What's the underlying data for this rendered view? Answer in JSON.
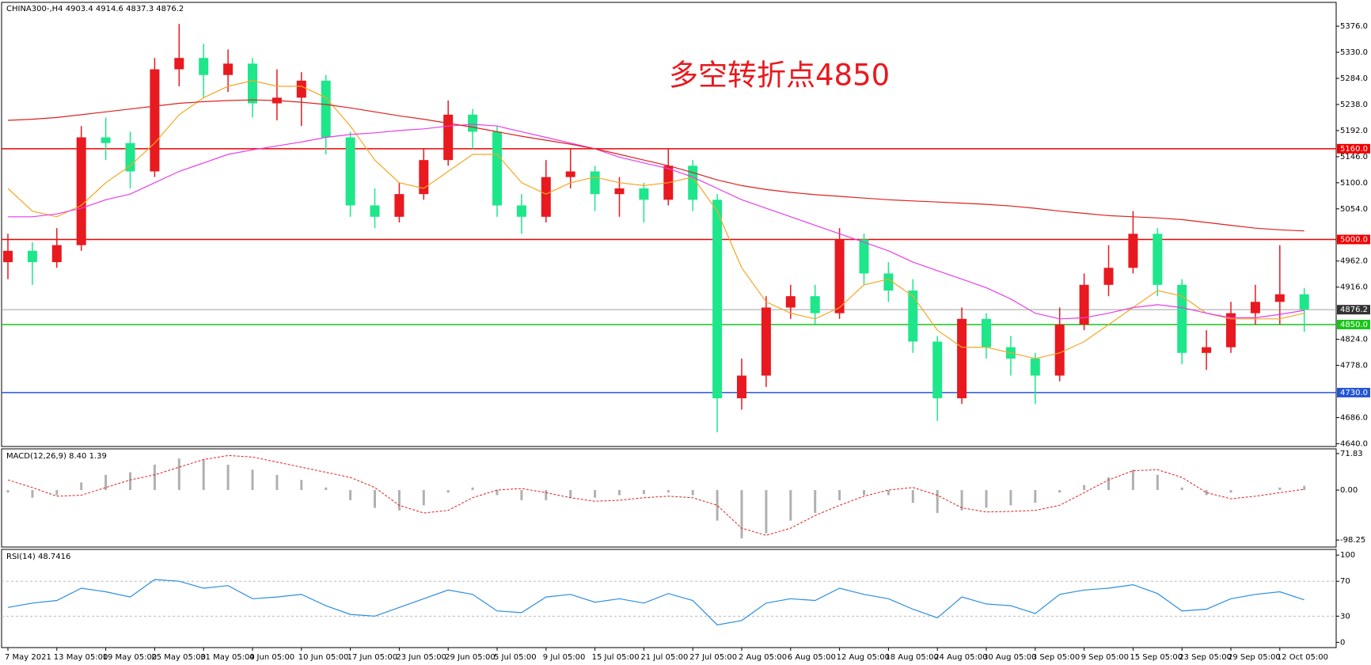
{
  "header": {
    "symbol": "CHINA300-,H4"
  },
  "annotation": "多空转折点4850",
  "chart_data": {
    "type": "candlestick",
    "categories": [
      "7 May 2021",
      null,
      "13 May 05:00",
      null,
      "19 May 05:00",
      null,
      "25 May 05:00",
      null,
      "31 May 05:00",
      null,
      "4 Jun 05:00",
      null,
      "10 Jun 05:00",
      null,
      "17 Jun 05:00",
      null,
      "23 Jun 05:00",
      null,
      "29 Jun 05:00",
      null,
      "5 Jul 05:00",
      null,
      "9 Jul 05:00",
      null,
      "15 Jul 05:00",
      null,
      "21 Jul 05:00",
      null,
      "27 Jul 05:00",
      null,
      "2 Aug 05:00",
      null,
      "6 Aug 05:00",
      null,
      "12 Aug 05:00",
      null,
      "18 Aug 05:00",
      null,
      "24 Aug 05:00",
      null,
      "30 Aug 05:00",
      null,
      "3 Sep 05:00",
      null,
      "9 Sep 05:00",
      null,
      "15 Sep 05:00",
      null,
      "23 Sep 05:00",
      null,
      "29 Sep 05:00",
      null,
      "12 Oct 05:00",
      null
    ],
    "candles": [
      [
        4960,
        5010,
        4930,
        4980
      ],
      [
        4980,
        4995,
        4920,
        4960
      ],
      [
        4960,
        5020,
        4950,
        4990
      ],
      [
        4990,
        5200,
        4980,
        5180
      ],
      [
        5180,
        5215,
        5140,
        5170
      ],
      [
        5170,
        5190,
        5090,
        5120
      ],
      [
        5120,
        5320,
        5110,
        5300
      ],
      [
        5300,
        5380,
        5270,
        5320
      ],
      [
        5320,
        5345,
        5250,
        5290
      ],
      [
        5290,
        5335,
        5260,
        5310
      ],
      [
        5310,
        5320,
        5215,
        5240
      ],
      [
        5240,
        5300,
        5210,
        5250
      ],
      [
        5250,
        5295,
        5200,
        5280
      ],
      [
        5280,
        5290,
        5150,
        5180
      ],
      [
        5180,
        5190,
        5040,
        5060
      ],
      [
        5060,
        5090,
        5020,
        5040
      ],
      [
        5040,
        5100,
        5030,
        5080
      ],
      [
        5080,
        5160,
        5070,
        5140
      ],
      [
        5140,
        5245,
        5130,
        5220
      ],
      [
        5220,
        5230,
        5160,
        5190
      ],
      [
        5190,
        5200,
        5040,
        5060
      ],
      [
        5060,
        5080,
        5010,
        5040
      ],
      [
        5040,
        5140,
        5030,
        5110
      ],
      [
        5110,
        5160,
        5090,
        5120
      ],
      [
        5120,
        5130,
        5050,
        5080
      ],
      [
        5080,
        5110,
        5040,
        5090
      ],
      [
        5090,
        5100,
        5030,
        5070
      ],
      [
        5070,
        5160,
        5060,
        5130
      ],
      [
        5130,
        5140,
        5050,
        5070
      ],
      [
        5070,
        5080,
        4660,
        4720
      ],
      [
        4720,
        4790,
        4700,
        4760
      ],
      [
        4760,
        4900,
        4740,
        4880
      ],
      [
        4880,
        4920,
        4860,
        4900
      ],
      [
        4900,
        4920,
        4850,
        4870
      ],
      [
        4870,
        5020,
        4860,
        5000
      ],
      [
        5000,
        5010,
        4920,
        4940
      ],
      [
        4940,
        4960,
        4890,
        4910
      ],
      [
        4910,
        4930,
        4800,
        4820
      ],
      [
        4820,
        4830,
        4680,
        4720
      ],
      [
        4720,
        4880,
        4710,
        4860
      ],
      [
        4860,
        4870,
        4790,
        4810
      ],
      [
        4810,
        4830,
        4760,
        4790
      ],
      [
        4790,
        4800,
        4710,
        4760
      ],
      [
        4760,
        4880,
        4750,
        4850
      ],
      [
        4850,
        4940,
        4840,
        4920
      ],
      [
        4920,
        4990,
        4900,
        4950
      ],
      [
        4950,
        5050,
        4940,
        5010
      ],
      [
        5010,
        5020,
        4900,
        4920
      ],
      [
        4920,
        4930,
        4780,
        4800
      ],
      [
        4800,
        4840,
        4770,
        4810
      ],
      [
        4810,
        4890,
        4800,
        4870
      ],
      [
        4870,
        4920,
        4850,
        4890
      ],
      [
        4890,
        4990,
        4850,
        4903.4
      ],
      [
        4903.4,
        4914.6,
        4837.3,
        4876.2
      ]
    ],
    "up_color": "#e8191f",
    "down_color": "#1ee68a",
    "ylim": [
      4635,
      5418
    ],
    "yticks": [
      {
        "value": 4640,
        "label": "4640.0"
      },
      {
        "value": 4686,
        "label": "4686.0"
      },
      {
        "value": 4778,
        "label": "4778.0"
      },
      {
        "value": 4824,
        "label": "4824.0"
      },
      {
        "value": 4916,
        "label": "4916.0"
      },
      {
        "value": 4962,
        "label": "4962.0"
      },
      {
        "value": 5054,
        "label": "5054.0"
      },
      {
        "value": 5100,
        "label": "5100.0"
      },
      {
        "value": 5146,
        "label": "5146.0"
      },
      {
        "value": 5192,
        "label": "5192.0"
      },
      {
        "value": 5238,
        "label": "5238.0"
      },
      {
        "value": 5284,
        "label": "5284.0"
      },
      {
        "value": 5330,
        "label": "5330.0"
      },
      {
        "value": 5376,
        "label": "5376.0"
      }
    ],
    "levels": [
      {
        "value": 5160,
        "label": "5160.0",
        "color": "#f00000"
      },
      {
        "value": 5000,
        "label": "5000.0",
        "color": "#f00000"
      },
      {
        "value": 4850,
        "label": "4850.0",
        "color": "#19c419"
      },
      {
        "value": 4730,
        "label": "4730.0",
        "color": "#2455d6"
      }
    ],
    "current_color": "#a0a0a0",
    "series": [
      {
        "color": "#f5a623",
        "values": [
          5090,
          5050,
          5040,
          5060,
          5100,
          5130,
          5170,
          5220,
          5250,
          5270,
          5280,
          5270,
          5270,
          5250,
          5200,
          5140,
          5100,
          5090,
          5120,
          5150,
          5150,
          5100,
          5080,
          5100,
          5110,
          5100,
          5095,
          5100,
          5110,
          5050,
          4950,
          4890,
          4870,
          4860,
          4880,
          4920,
          4930,
          4900,
          4840,
          4810,
          4810,
          4800,
          4790,
          4800,
          4820,
          4850,
          4880,
          4910,
          4900,
          4870,
          4860,
          4860,
          4860,
          4870
        ]
      },
      {
        "color": "#e83ee8",
        "values": [
          5040,
          5040,
          5045,
          5055,
          5070,
          5080,
          5100,
          5120,
          5135,
          5150,
          5158,
          5165,
          5172,
          5180,
          5185,
          5188,
          5192,
          5195,
          5200,
          5203,
          5200,
          5190,
          5180,
          5170,
          5160,
          5145,
          5135,
          5125,
          5110,
          5090,
          5070,
          5055,
          5040,
          5025,
          5010,
          4995,
          4980,
          4960,
          4945,
          4930,
          4915,
          4895,
          4870,
          4860,
          4862,
          4870,
          4880,
          4885,
          4880,
          4870,
          4862,
          4862,
          4868,
          4875
        ]
      },
      {
        "color": "#e02020",
        "values": [
          5210,
          5212,
          5215,
          5220,
          5225,
          5230,
          5235,
          5240,
          5243,
          5245,
          5246,
          5245,
          5242,
          5238,
          5232,
          5225,
          5218,
          5212,
          5205,
          5198,
          5190,
          5182,
          5175,
          5168,
          5160,
          5150,
          5140,
          5130,
          5118,
          5105,
          5095,
          5088,
          5083,
          5079,
          5076,
          5073,
          5070,
          5068,
          5066,
          5064,
          5062,
          5059,
          5055,
          5050,
          5046,
          5042,
          5040,
          5038,
          5035,
          5030,
          5025,
          5020,
          5017,
          5015
        ]
      }
    ],
    "macd": {
      "label": "MACD(12,26,9) 8.40 1.39",
      "ylim": [
        -112,
        81
      ],
      "yticks": [
        71.83,
        {
          "value": 0,
          "label": "0.00"
        },
        -98.25
      ],
      "histogram": {
        "color": "#b0b0b0",
        "values": [
          -5,
          -15,
          -10,
          15,
          30,
          35,
          50,
          62,
          60,
          50,
          40,
          30,
          20,
          5,
          -20,
          -35,
          -40,
          -30,
          -5,
          5,
          -10,
          -20,
          -20,
          -15,
          -15,
          -10,
          -8,
          -5,
          -10,
          -60,
          -95,
          -85,
          -60,
          -45,
          -20,
          -10,
          -10,
          -25,
          -45,
          -40,
          -35,
          -30,
          -25,
          -5,
          10,
          25,
          40,
          30,
          5,
          -10,
          -5,
          0,
          5,
          8.4
        ]
      },
      "signal": {
        "color": "#e02020",
        "values": [
          20,
          5,
          -12,
          -10,
          5,
          20,
          30,
          45,
          60,
          68,
          65,
          55,
          45,
          35,
          25,
          5,
          -30,
          -45,
          -40,
          -15,
          0,
          3,
          -5,
          -15,
          -22,
          -20,
          -15,
          -12,
          -15,
          -30,
          -75,
          -89,
          -75,
          -50,
          -30,
          -12,
          0,
          5,
          -10,
          -35,
          -43,
          -42,
          -40,
          -30,
          -5,
          20,
          38,
          40,
          25,
          -5,
          -17,
          -12,
          -5,
          1.39
        ]
      }
    },
    "rsi": {
      "label": "RSI(14)",
      "ylim": [
        -6,
        106.5
      ],
      "yticks": [
        100,
        70,
        30,
        0
      ],
      "levels": [
        70,
        30
      ],
      "color": "#2a8ee0",
      "values": [
        40,
        45,
        48,
        62,
        58,
        52,
        72,
        70,
        62,
        65,
        50,
        52,
        55,
        42,
        32,
        30,
        40,
        50,
        60,
        55,
        36,
        34,
        52,
        55,
        46,
        50,
        45,
        56,
        48,
        20,
        25,
        45,
        50,
        48,
        62,
        55,
        50,
        38,
        28,
        52,
        44,
        42,
        33,
        55,
        60,
        62,
        66,
        56,
        36,
        38,
        50,
        55,
        58,
        48.7416
      ]
    }
  }
}
